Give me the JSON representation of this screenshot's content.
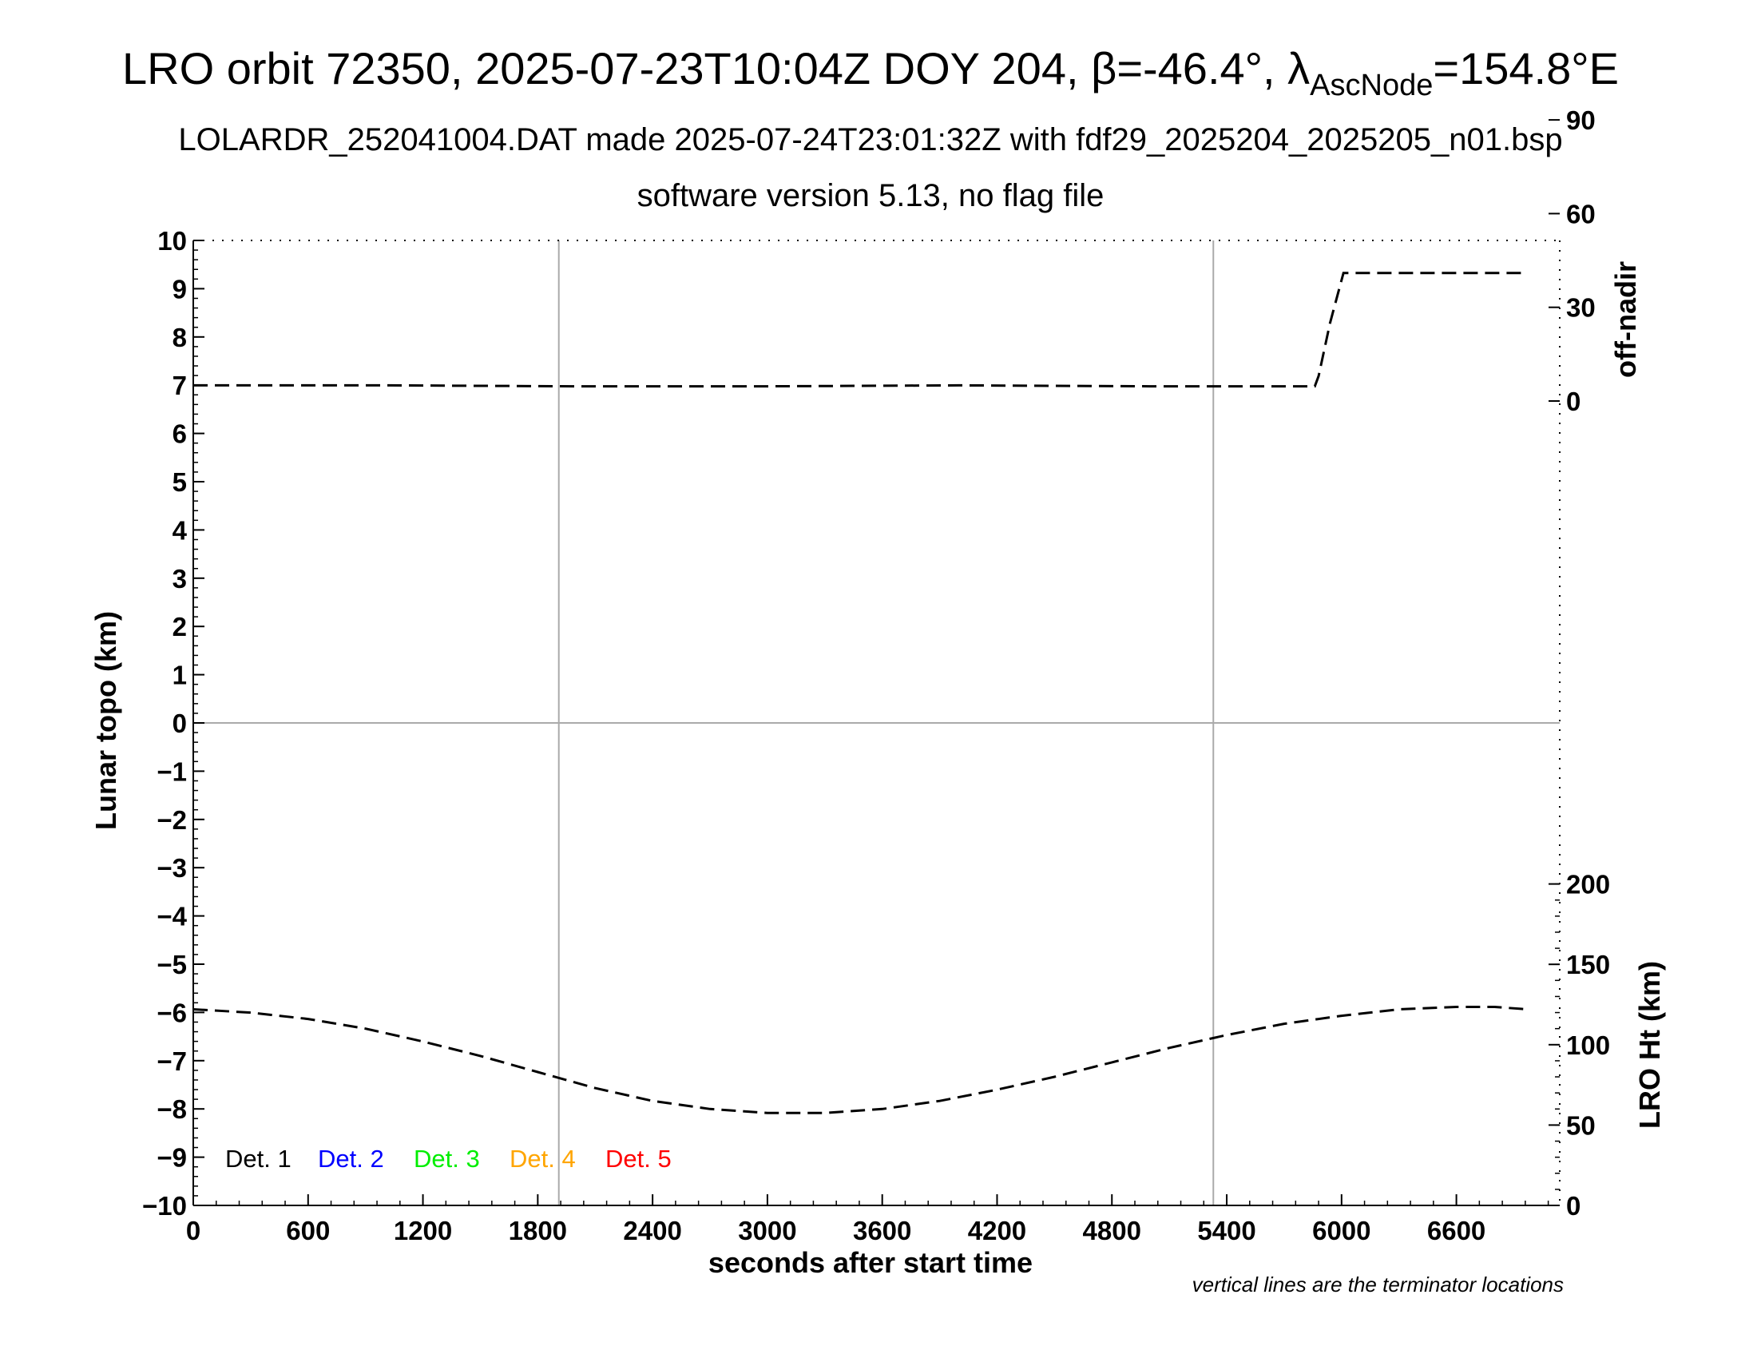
{
  "chart_data": {
    "type": "line",
    "title": {
      "prefix": "LRO orbit 72350, 2025-07-23T10:04Z DOY 204, ",
      "beta_symbol": "β",
      "beta_value": "=-46.4°, ",
      "lambda_symbol": "λ",
      "lambda_subscript": "AscNode",
      "lambda_value": "=154.8°E"
    },
    "subtitle": "LOLARDR_252041004.DAT made 2025-07-24T23:01:32Z with fdf29_2025204_2025205_n01.bsp",
    "subtitle2": "software version 5.13, no flag file",
    "xlabel": "seconds after start time",
    "ylabel": "Lunar topo (km)",
    "y2_top_label": "off-nadir",
    "y2_bottom_label": "LRO Ht (km)",
    "note": "vertical lines are the terminator locations",
    "xlim": [
      0,
      7140
    ],
    "ylim": [
      -10,
      10
    ],
    "x_ticks": [
      0,
      600,
      1200,
      1800,
      2400,
      3000,
      3600,
      4200,
      4800,
      5400,
      6000,
      6600
    ],
    "y_ticks": [
      10,
      9,
      8,
      7,
      6,
      5,
      4,
      3,
      2,
      1,
      0,
      -1,
      -2,
      -3,
      -4,
      -5,
      -6,
      -7,
      -8,
      -9,
      -10
    ],
    "y_tick_labels": [
      "10",
      "9",
      "8",
      "7",
      "6",
      "5",
      "4",
      "3",
      "2",
      "1",
      "0",
      "−1",
      "−2",
      "−3",
      "−4",
      "−5",
      "−6",
      "−7",
      "−8",
      "−9",
      "−10"
    ],
    "off_nadir_ticks": [
      90,
      60,
      30,
      0
    ],
    "ht_ticks": [
      200,
      150,
      100,
      50,
      0
    ],
    "terminator_x": [
      1910,
      5330
    ],
    "horizontal_zero_line": 0,
    "grid": false,
    "legend": {
      "placement": "bottom-left",
      "entries": [
        {
          "label": "Det. 1",
          "color": "#000000"
        },
        {
          "label": "Det. 2",
          "color": "#0000ff"
        },
        {
          "label": "Det. 3",
          "color": "#00ee00"
        },
        {
          "label": "Det. 4",
          "color": "#ffa500"
        },
        {
          "label": "Det. 5",
          "color": "#ff0000"
        }
      ]
    },
    "series": [
      {
        "axis": "off-nadir",
        "style": "dashed",
        "color": "#000000",
        "points": [
          [
            0,
            5
          ],
          [
            1000,
            5
          ],
          [
            2000,
            4.7
          ],
          [
            3000,
            4.7
          ],
          [
            4000,
            5
          ],
          [
            5000,
            4.7
          ],
          [
            5860,
            4.7
          ],
          [
            5880,
            8
          ],
          [
            5940,
            25
          ],
          [
            6010,
            41
          ],
          [
            6970,
            41
          ]
        ]
      },
      {
        "axis": "height",
        "style": "dashed",
        "color": "#000000",
        "points": [
          [
            0,
            122
          ],
          [
            300,
            120
          ],
          [
            600,
            116
          ],
          [
            900,
            110
          ],
          [
            1200,
            102
          ],
          [
            1500,
            93
          ],
          [
            1800,
            83
          ],
          [
            2100,
            73
          ],
          [
            2400,
            65
          ],
          [
            2700,
            60
          ],
          [
            3000,
            57.5
          ],
          [
            3300,
            57.5
          ],
          [
            3600,
            60
          ],
          [
            3900,
            65
          ],
          [
            4200,
            72
          ],
          [
            4500,
            80
          ],
          [
            4800,
            89
          ],
          [
            5100,
            98
          ],
          [
            5400,
            106
          ],
          [
            5700,
            113
          ],
          [
            6000,
            118
          ],
          [
            6300,
            122
          ],
          [
            6600,
            123.5
          ],
          [
            6800,
            123.5
          ],
          [
            6970,
            122
          ]
        ]
      }
    ]
  }
}
